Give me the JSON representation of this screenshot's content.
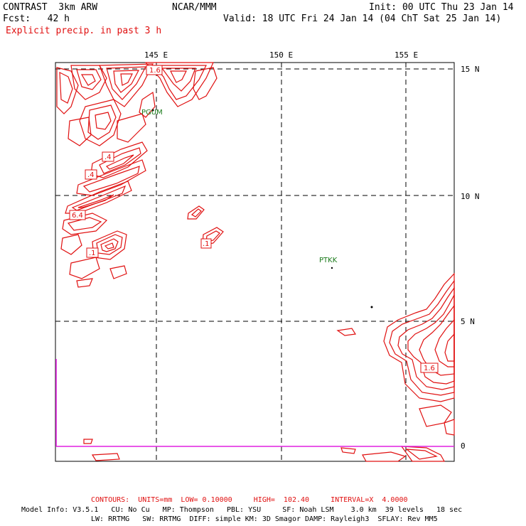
{
  "header": {
    "title_left": "CONTRAST  3km ARW",
    "title_center": "NCAR/MMM",
    "init": "Init: 00 UTC Thu 23 Jan 14",
    "fcst_label": "Fcst:   42 h",
    "valid": "Valid: 18 UTC Fri 24 Jan 14 (04 ChT Sat 25 Jan 14)",
    "field": "Explicit precip. in past 3 h"
  },
  "map": {
    "lon_labels": [
      "145 E",
      "150 E",
      "155 E"
    ],
    "lat_labels": [
      "15 N",
      "10 N",
      "5 N",
      "0"
    ],
    "stations": [
      "PGUM",
      "PTKK"
    ],
    "contour_labels": [
      "1.6",
      ".4",
      ".4",
      "6.4",
      ".1",
      ".1",
      "1.6"
    ],
    "colors": {
      "contour": "#e01010",
      "grid": "#000000",
      "station": "#1a7a1a",
      "boundary": "#e020e0"
    }
  },
  "footer": {
    "contours": "CONTOURS:  UNITS=mm  LOW= 0.10000     HIGH=  102.40     INTERVAL=X  4.0000",
    "model_info": "Model Info: V3.5.1   CU: No Cu   MP: Thompson   PBL: YSU     SF: Noah LSM    3.0 km  39 levels   18 sec",
    "model_info2": "LW: RRTMG   SW: RRTMG  DIFF: simple KM: 3D Smagor DAMP: Rayleigh3  SFLAY: Rev MM5"
  }
}
